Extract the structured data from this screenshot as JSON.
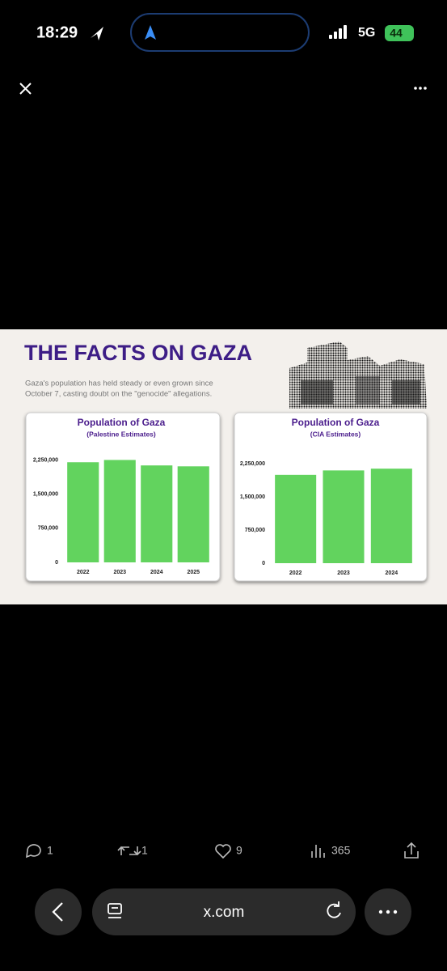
{
  "status_bar": {
    "time": "18:29",
    "network": "5G",
    "battery": "44"
  },
  "infographic": {
    "title": "THE FACTS ON GAZA",
    "subtitle_lines": [
      "Gaza's population has held steady or even grown since",
      "October 7, casting doubt on the \"genocide\" allegations."
    ]
  },
  "chart_data": [
    {
      "type": "bar",
      "title": "Population of Gaza",
      "subtitle": "(Palestine Estimates)",
      "categories": [
        "2022",
        "2023",
        "2024",
        "2025"
      ],
      "values": [
        2200000,
        2250000,
        2130000,
        2110000
      ],
      "color": "#62d35e",
      "ylim": [
        0,
        2400000
      ],
      "yticks": [
        0,
        {
          "value": 750000,
          "label": "750,000"
        },
        {
          "value": 1500000,
          "label": "1,500,000"
        },
        {
          "value": 2250000,
          "label": "2,250,000"
        }
      ]
    },
    {
      "type": "bar",
      "title": "Population of Gaza",
      "subtitle": "(CIA Estimates)",
      "categories": [
        "2022",
        "2023",
        "2024"
      ],
      "values": [
        2000000,
        2100000,
        2140000
      ],
      "color": "#62d35e",
      "ylim": [
        0,
        2400000
      ],
      "yticks": [
        0,
        {
          "value": 750000,
          "label": "750,000"
        },
        {
          "value": 1500000,
          "label": "1,500,000"
        },
        {
          "value": 2250000,
          "label": "2,250,000"
        }
      ]
    }
  ],
  "post_actions": {
    "replies": 1,
    "reposts": 1,
    "likes": 9,
    "views": 365
  },
  "browser_bar": {
    "url": "x.com"
  }
}
